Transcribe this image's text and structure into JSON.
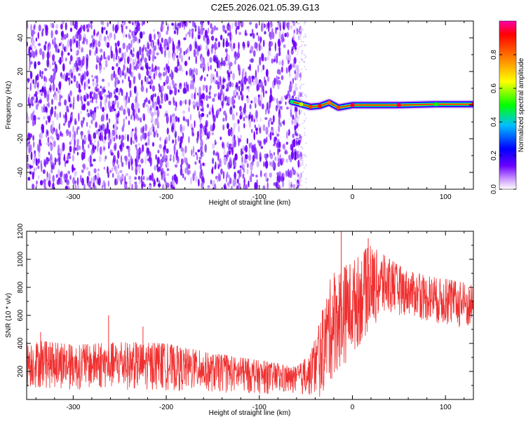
{
  "title": "C2E5.2026.021.05.39.G13",
  "chart_data": [
    {
      "type": "heatmap",
      "title": "C2E5.2026.021.05.39.G13",
      "xlabel": "Height of straight line (km)",
      "ylabel": "Frequency (Hz)",
      "xlim": [
        -350,
        130
      ],
      "ylim": [
        -50,
        50
      ],
      "x_ticks": [
        -300,
        -200,
        -100,
        0,
        100
      ],
      "y_ticks": [
        -40,
        -20,
        0,
        20,
        40
      ],
      "colorbar": {
        "label": "Normalized spectral amplitude",
        "range": [
          0,
          1
        ],
        "ticks": [
          0.0,
          0.2,
          0.4,
          0.6,
          0.8
        ],
        "colors": [
          "#ffffff",
          "#cc99ff",
          "#6a00ff",
          "#0000ff",
          "#00bfff",
          "#00ff00",
          "#ffff00",
          "#ff8000",
          "#ff0000",
          "#ff00aa"
        ]
      },
      "noise_region": {
        "x": [
          -350,
          -55
        ],
        "frequency": [
          -50,
          50
        ],
        "amplitude": 0.1
      },
      "signal_line": [
        {
          "x": -65,
          "frequency": 2.0,
          "amplitude": 0.45
        },
        {
          "x": -55,
          "frequency": 0.5,
          "amplitude": 0.6
        },
        {
          "x": -45,
          "frequency": -1.0,
          "amplitude": 0.85
        },
        {
          "x": -35,
          "frequency": -0.5,
          "amplitude": 0.9
        },
        {
          "x": -25,
          "frequency": 1.5,
          "amplitude": 0.8
        },
        {
          "x": -15,
          "frequency": -1.5,
          "amplitude": 0.85
        },
        {
          "x": 0,
          "frequency": 0.0,
          "amplitude": 0.95
        },
        {
          "x": 50,
          "frequency": 0.0,
          "amplitude": 0.95
        },
        {
          "x": 90,
          "frequency": 0.5,
          "amplitude": 0.5
        },
        {
          "x": 130,
          "frequency": 0.5,
          "amplitude": 0.9
        }
      ]
    },
    {
      "type": "line",
      "xlabel": "Height of straight line (km)",
      "ylabel": "SNR (10 * v/v)",
      "xlim": [
        -350,
        130
      ],
      "ylim": [
        0,
        1200
      ],
      "x_ticks": [
        -300,
        -200,
        -100,
        0,
        100
      ],
      "y_ticks": [
        200,
        400,
        600,
        800,
        1000,
        1200
      ],
      "color": "#f03030",
      "envelope": {
        "x": [
          -350,
          -300,
          -250,
          -200,
          -150,
          -100,
          -60,
          -45,
          -35,
          -25,
          -15,
          0,
          20,
          40,
          60,
          80,
          100,
          130
        ],
        "low": [
          80,
          70,
          70,
          60,
          50,
          40,
          30,
          20,
          0,
          100,
          200,
          300,
          500,
          600,
          600,
          550,
          520,
          480
        ],
        "high": [
          430,
          390,
          410,
          400,
          330,
          280,
          230,
          330,
          550,
          850,
          950,
          1000,
          1100,
          1000,
          920,
          880,
          860,
          820
        ]
      },
      "spikes": [
        {
          "x": -335,
          "y": 480
        },
        {
          "x": -262,
          "y": 600
        },
        {
          "x": -225,
          "y": 520
        },
        {
          "x": -12,
          "y": 1200
        },
        {
          "x": 17,
          "y": 1150
        }
      ]
    }
  ]
}
